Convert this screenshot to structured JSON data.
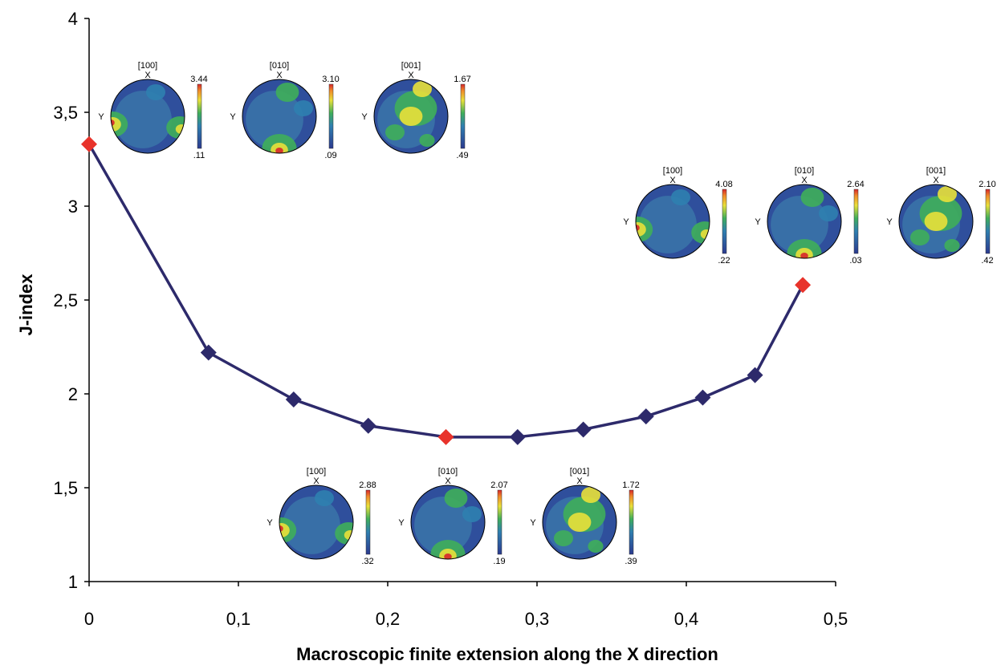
{
  "chart_data": {
    "type": "line",
    "xlabel": "Macroscopic finite extension along the X direction",
    "ylabel": "J-index",
    "xlim": [
      0,
      0.5
    ],
    "ylim": [
      1,
      4
    ],
    "x_ticks": [
      "0",
      "0,1",
      "0,2",
      "0,3",
      "0,4",
      "0,5"
    ],
    "y_ticks": [
      "1",
      "1,5",
      "2",
      "2,5",
      "3",
      "3,5",
      "4"
    ],
    "grid": false,
    "series": [
      {
        "color": "#2d2a6b",
        "marker": "diamond",
        "points": [
          {
            "x": 0.0,
            "y": 3.33,
            "highlight": true
          },
          {
            "x": 0.08,
            "y": 2.22,
            "highlight": false
          },
          {
            "x": 0.137,
            "y": 1.97,
            "highlight": false
          },
          {
            "x": 0.187,
            "y": 1.83,
            "highlight": false
          },
          {
            "x": 0.239,
            "y": 1.77,
            "highlight": true
          },
          {
            "x": 0.287,
            "y": 1.77,
            "highlight": false
          },
          {
            "x": 0.331,
            "y": 1.81,
            "highlight": false
          },
          {
            "x": 0.373,
            "y": 1.88,
            "highlight": false
          },
          {
            "x": 0.411,
            "y": 1.98,
            "highlight": false
          },
          {
            "x": 0.446,
            "y": 2.1,
            "highlight": false
          },
          {
            "x": 0.478,
            "y": 2.58,
            "highlight": true
          }
        ]
      }
    ],
    "highlight_color": "#e8332b",
    "pole_figure_groups": [
      {
        "name": "pf-group-initial",
        "figures": [
          {
            "label": "[100]",
            "axis_x": "X",
            "axis_y": "Y",
            "max": "3.44",
            "min": ".11"
          },
          {
            "label": "[010]",
            "axis_x": "X",
            "axis_y": "Y",
            "max": "3.10",
            "min": ".09"
          },
          {
            "label": "[001]",
            "axis_x": "X",
            "axis_y": "Y",
            "max": "1.67",
            "min": ".49"
          }
        ]
      },
      {
        "name": "pf-group-minimum",
        "figures": [
          {
            "label": "[100]",
            "axis_x": "X",
            "axis_y": "Y",
            "max": "2.88",
            "min": ".32"
          },
          {
            "label": "[010]",
            "axis_x": "X",
            "axis_y": "Y",
            "max": "2.07",
            "min": ".19"
          },
          {
            "label": "[001]",
            "axis_x": "X",
            "axis_y": "Y",
            "max": "1.72",
            "min": ".39"
          }
        ]
      },
      {
        "name": "pf-group-final",
        "figures": [
          {
            "label": "[100]",
            "axis_x": "X",
            "axis_y": "Y",
            "max": "4.08",
            "min": ".22"
          },
          {
            "label": "[010]",
            "axis_x": "X",
            "axis_y": "Y",
            "max": "2.64",
            "min": ".03"
          },
          {
            "label": "[001]",
            "axis_x": "X",
            "axis_y": "Y",
            "max": "2.10",
            "min": ".42"
          }
        ]
      }
    ]
  }
}
